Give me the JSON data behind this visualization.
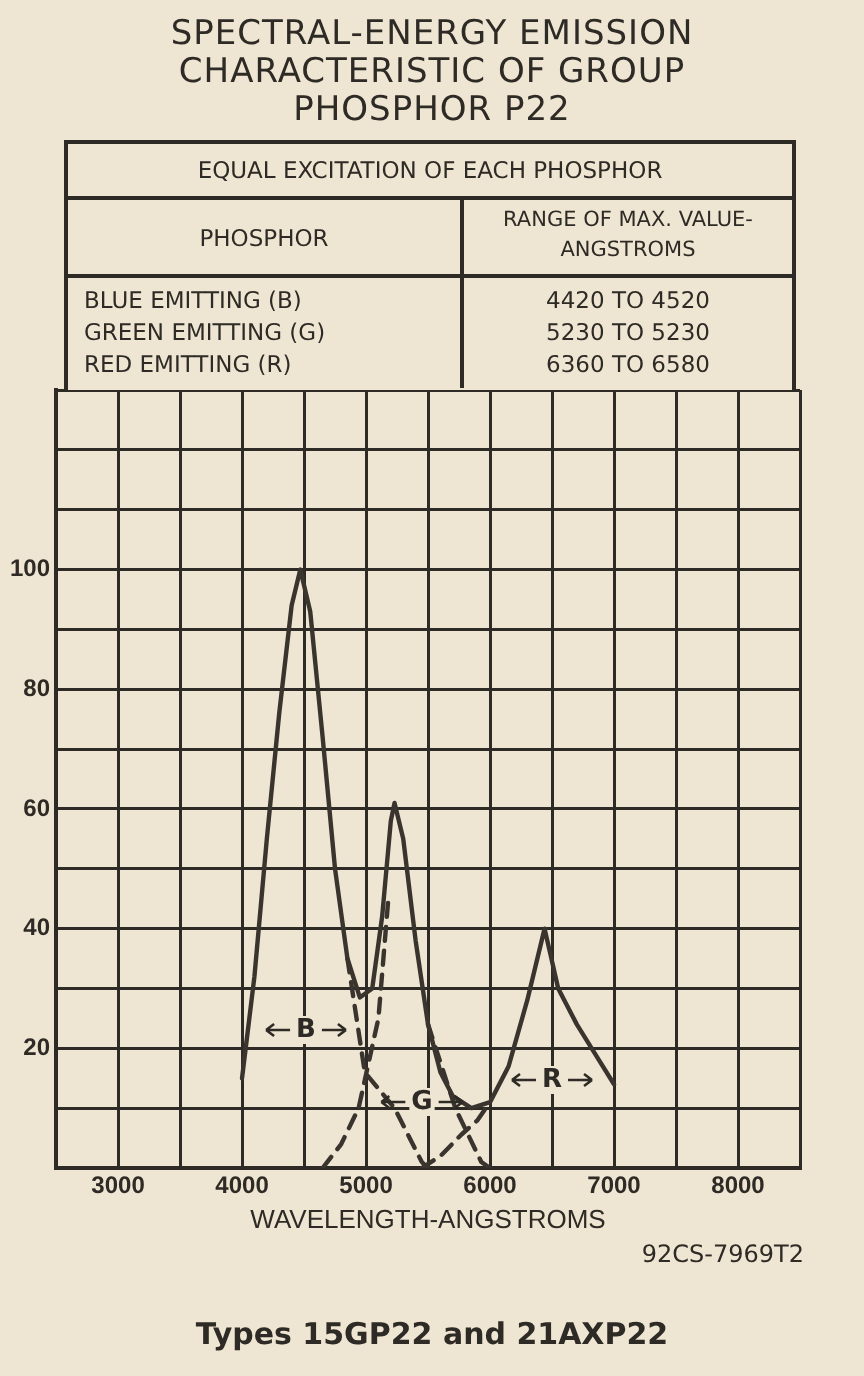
{
  "chart_data": {
    "type": "line",
    "title": "SPECTRAL-ENERGY EMISSION CHARACTERISTIC OF GROUP PHOSPHOR P22",
    "xlabel": "WAVELENGTH-ANGSTROMS",
    "x": [
      4000,
      4100,
      4200,
      4300,
      4400,
      4470,
      4550,
      4650,
      4750,
      4850,
      4950,
      5050,
      5130,
      5200,
      5230,
      5300,
      5400,
      5500,
      5600,
      5700,
      5850,
      6000,
      6150,
      6300,
      6440,
      6550,
      6700,
      6850,
      7000
    ],
    "series": [
      {
        "color": "#3a342e",
        "values": [
          15,
          32,
          55,
          76,
          94,
          100,
          93,
          72,
          50,
          35,
          28.5,
          30,
          42,
          58,
          61,
          55,
          38,
          24,
          16,
          12,
          10,
          11,
          17,
          28,
          40,
          30,
          24,
          19,
          14
        ]
      },
      {
        "color": "#3a342e",
        "line_style": "dashed",
        "x": [
          4850,
          4990,
          5230,
          5450,
          5500
        ],
        "values": [
          35,
          16,
          10,
          1,
          0
        ]
      },
      {
        "color": "#3a342e",
        "line_style": "dashed",
        "x": [
          4650,
          4800,
          4940,
          5100,
          5180,
          5350,
          5500,
          5720,
          5930,
          6000
        ],
        "values": [
          0,
          4,
          10,
          25,
          45,
          null,
          24,
          10,
          1,
          0
        ]
      },
      {
        "color": "#3a342e",
        "line_style": "dashed",
        "x": [
          5450,
          5600,
          5770,
          5900,
          6000
        ],
        "values": [
          0,
          2,
          5.6,
          8,
          11
        ]
      }
    ],
    "xlim": [
      2500,
      8500
    ],
    "xticks": [
      {
        "value": 2500,
        "label": null
      },
      3000,
      {
        "value": 3500,
        "label": null
      },
      4000,
      {
        "value": 4500,
        "label": null
      },
      5000,
      {
        "value": 5500,
        "label": null
      },
      6000,
      {
        "value": 6500,
        "label": null
      },
      7000,
      {
        "value": 7500,
        "label": null
      },
      8000,
      {
        "value": 8500,
        "label": null
      }
    ],
    "ylim": [
      0,
      130
    ],
    "yticks": [
      {
        "value": 0,
        "label": null
      },
      {
        "value": 10,
        "label": null
      },
      20,
      {
        "value": 30,
        "label": null
      },
      40,
      {
        "value": 50,
        "label": null
      },
      60,
      {
        "value": 70,
        "label": null
      },
      80,
      {
        "value": 90,
        "label": null
      },
      100,
      {
        "value": 110,
        "label": null
      },
      {
        "value": 120,
        "label": null
      },
      {
        "value": 130,
        "label": null
      }
    ],
    "grid": true,
    "line_style": "solid",
    "marker": "none",
    "annotations": [
      "EQUAL EXCITATION OF EACH PHOSPHOR",
      "PHOSPHOR",
      "RANGE OF MAX. VALUE-ANGSTROMS",
      "BLUE EMITTING (B)",
      "4420 TO 4520",
      "GREEN EMITTING (G)",
      "5230 TO 5230",
      "RED EMITTING (R)",
      "6360 TO 6580",
      "92CS-7969T2",
      "Types 15GP22 and 21AXP22",
      "B",
      "G",
      "R"
    ]
  }
}
